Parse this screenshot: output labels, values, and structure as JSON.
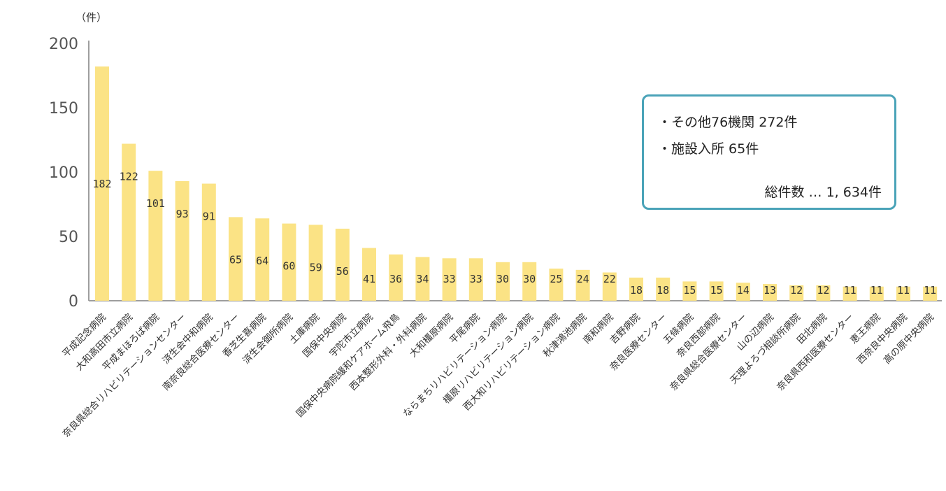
{
  "chart_data": {
    "type": "bar",
    "unit_label": "（件）",
    "yticks": [
      0,
      50,
      100,
      150,
      200
    ],
    "ylim": [
      0,
      200
    ],
    "categories": [
      "平成記念病院",
      "大和高田市立病院",
      "平成まほろば病院",
      "奈良県総合リハビリテーションセンター",
      "済生会中和病院",
      "南奈良総合医療センター",
      "香芝生喜病院",
      "済生会御所病院",
      "土庫病院",
      "国保中央病院",
      "宇陀市立病院",
      "国保中央病院緩和ケアホーム飛鳥",
      "西本整形外科・外科病院",
      "大和橿原病院",
      "平尾病院",
      "ならまちリハビリテーション病院",
      "橿原リハビリテーション病院",
      "西大和リハビリテーション病院",
      "秋津鴻池病院",
      "南和病院",
      "吉野病院",
      "奈良医療センター",
      "五條病院",
      "奈良西部病院",
      "奈良県総合医療センター",
      "山の辺病院",
      "天理よろづ相談所病院",
      "田北病院",
      "奈良県西和医療センター",
      "恵王病院",
      "西奈良中央病院",
      "高の原中央病院"
    ],
    "values": [
      182,
      122,
      101,
      93,
      91,
      65,
      64,
      60,
      59,
      56,
      41,
      36,
      34,
      33,
      33,
      30,
      30,
      25,
      24,
      22,
      18,
      18,
      15,
      15,
      14,
      13,
      12,
      12,
      11,
      11,
      11,
      11
    ],
    "bar_color": "#fbe385",
    "axis_color": "#9e9e9e"
  },
  "infobox": {
    "line1": "・その他76機関  272件",
    "line2": "・施設入所  65件",
    "total": "総件数 … 1, 634件"
  }
}
